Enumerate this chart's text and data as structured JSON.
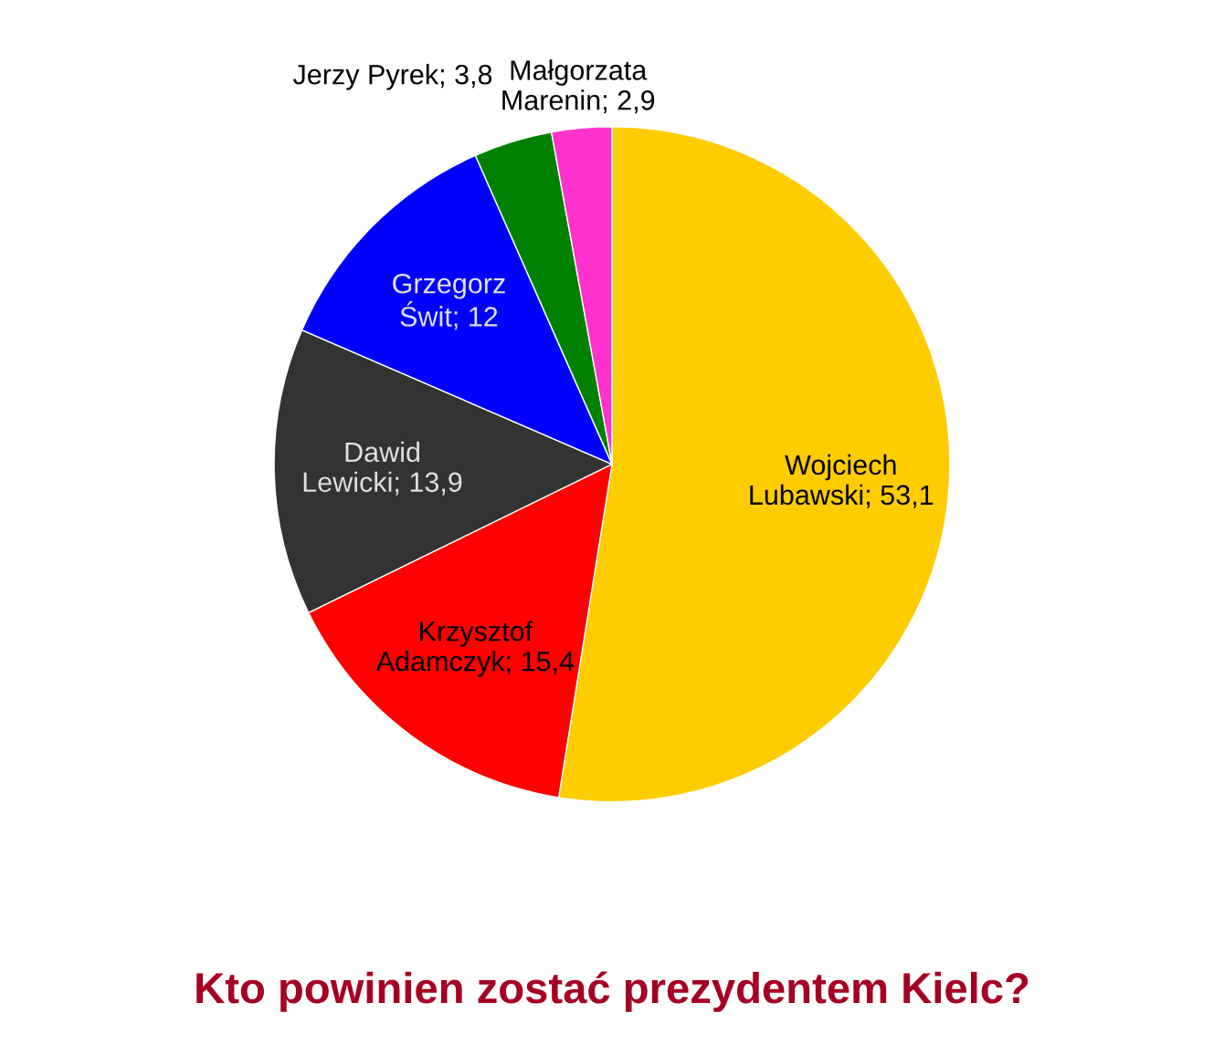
{
  "chart_data": {
    "type": "pie",
    "title": "Kto powinien zostać prezydentem Kielc?",
    "categories": [
      "Wojciech Lubawski",
      "Krzysztof Adamczyk",
      "Dawid Lewicki",
      "Grzegorz Świt",
      "Jerzy Pyrek",
      "Małgorzata Marenin"
    ],
    "values": [
      53.1,
      15.4,
      13.9,
      12,
      3.8,
      2.9
    ],
    "value_labels": [
      "53,1",
      "15,4",
      "13,9",
      "12",
      "3,8",
      "2,9"
    ],
    "colors": [
      "#ffcc00",
      "#ff0000",
      "#333333",
      "#0000ff",
      "#008000",
      "#ff33cc"
    ],
    "legend": false
  }
}
